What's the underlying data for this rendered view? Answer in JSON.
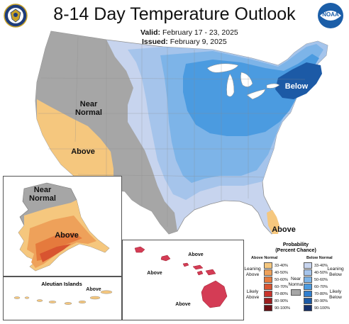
{
  "title": "8-14 Day Temperature Outlook",
  "valid_label": "Valid:",
  "valid_value": "February 17 - 23, 2025",
  "issued_label": "Issued:",
  "issued_value": "February 9, 2025",
  "noaa_logo_text": "NOAA",
  "map_labels": {
    "conus_near_normal": "Near Normal",
    "conus_above": "Above",
    "conus_below": "Below",
    "florida_above": "Above",
    "alaska_near_normal": "Near Normal",
    "alaska_above": "Above",
    "hawaii_above_1": "Above",
    "hawaii_above_2": "Above",
    "hawaii_above_3": "Above",
    "aleutian_title": "Aleutian Islands",
    "aleutian_above": "Above"
  },
  "legend": {
    "title_line1": "Probability",
    "title_line2": "(Percent Chance)",
    "above_header": "Above Normal",
    "below_header": "Below Normal",
    "near_label": "Near Normal",
    "leaning_above": "Leaning Above",
    "likely_above": "Likely Above",
    "leaning_below": "Leaning Below",
    "likely_below": "Likely Below",
    "ranges": [
      "33-40%",
      "40-50%",
      "50-60%",
      "60-70%",
      "70-80%",
      "80-90%",
      "90-100%"
    ],
    "above_colors": [
      "#f5c77e",
      "#eea15a",
      "#e57a3d",
      "#d85430",
      "#c8342b",
      "#9b1d1e",
      "#6b0f14"
    ],
    "below_colors": [
      "#c7d4ee",
      "#a5c4eb",
      "#7db4e8",
      "#4b9be0",
      "#2f7ecf",
      "#1c5aa6",
      "#14306b"
    ],
    "near_color": "#a6a6a6"
  }
}
